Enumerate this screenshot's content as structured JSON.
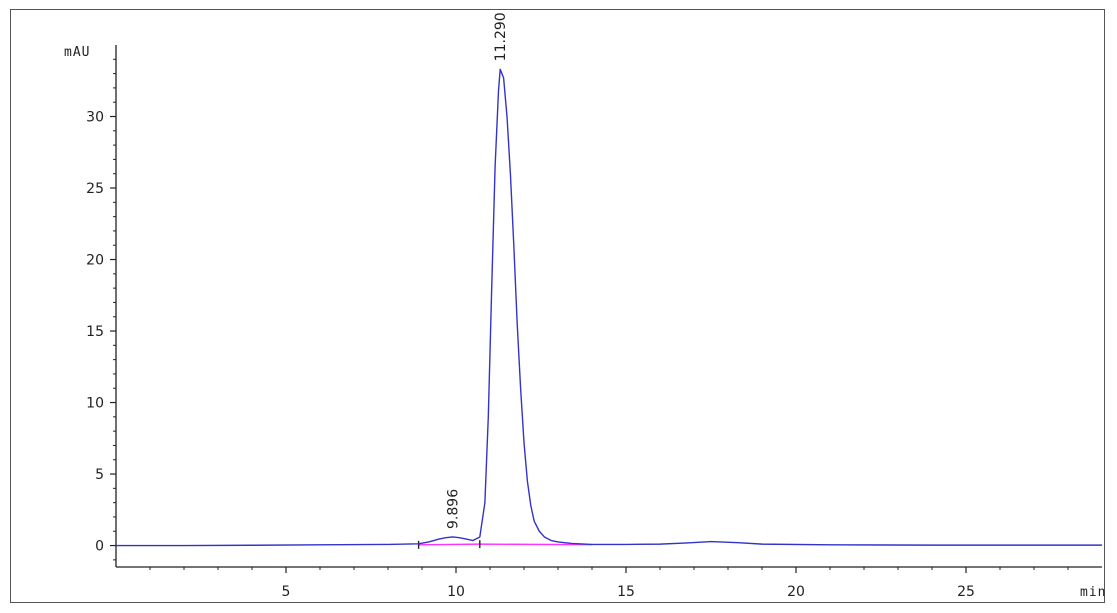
{
  "chart_data": {
    "type": "line",
    "title": "",
    "xlabel": "min",
    "ylabel": "mAU",
    "xlim": [
      0,
      29
    ],
    "ylim": [
      -1.5,
      35
    ],
    "x_ticks": [
      5,
      10,
      15,
      20,
      25
    ],
    "y_ticks": [
      0,
      5,
      10,
      15,
      20,
      25,
      30
    ],
    "grid": false,
    "colors": {
      "signal": "#3333cc",
      "baseline": "#ff33ff",
      "axis": "#222222"
    },
    "series": [
      {
        "x": [
          0,
          2,
          4,
          6,
          8,
          8.9,
          9.2,
          9.5,
          9.7,
          9.9,
          10.1,
          10.3,
          10.5,
          10.7,
          10.85,
          10.95,
          11.05,
          11.15,
          11.25,
          11.3,
          11.4,
          11.5,
          11.6,
          11.7,
          11.8,
          11.9,
          12.0,
          12.1,
          12.2,
          12.3,
          12.45,
          12.6,
          12.8,
          13.0,
          13.4,
          14.0,
          15,
          16,
          16.8,
          17.5,
          18.3,
          19,
          21,
          24,
          27,
          29
        ],
        "y": [
          0,
          0,
          0.02,
          0.05,
          0.08,
          0.12,
          0.25,
          0.45,
          0.55,
          0.6,
          0.55,
          0.45,
          0.35,
          0.6,
          3.0,
          9.0,
          18.0,
          26.5,
          31.8,
          33.3,
          32.7,
          30.0,
          26.0,
          21.0,
          15.5,
          11.0,
          7.2,
          4.5,
          2.8,
          1.7,
          1.0,
          0.6,
          0.35,
          0.25,
          0.15,
          0.08,
          0.08,
          0.1,
          0.18,
          0.28,
          0.2,
          0.1,
          0.05,
          0.03,
          0.03,
          0.03
        ]
      }
    ],
    "baselines": [
      {
        "x": [
          8.9,
          10.7
        ],
        "y": [
          0.05,
          0.1
        ]
      },
      {
        "x": [
          10.7,
          14.0
        ],
        "y": [
          0.1,
          0.06
        ]
      }
    ],
    "peaks": [
      {
        "rt": 9.896,
        "label": "9.896",
        "height": 0.6
      },
      {
        "rt": 11.29,
        "label": "11.290",
        "height": 33.3
      }
    ]
  }
}
